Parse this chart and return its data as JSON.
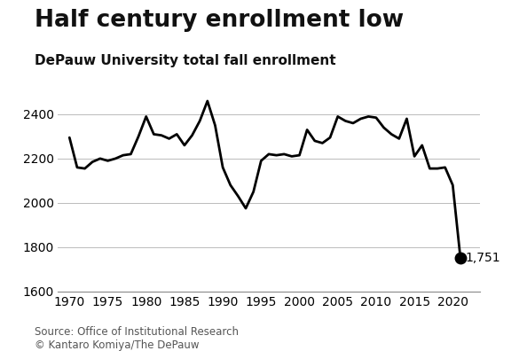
{
  "title": "Half century enrollment low",
  "subtitle": "DePauw University total fall enrollment",
  "source_line1": "Source: Office of Institutional Research",
  "source_line2": "© Kantaro Komiya/The DePauw",
  "last_label": "1,751",
  "years": [
    1970,
    1971,
    1972,
    1973,
    1974,
    1975,
    1976,
    1977,
    1978,
    1979,
    1980,
    1981,
    1982,
    1983,
    1984,
    1985,
    1986,
    1987,
    1988,
    1989,
    1990,
    1991,
    1992,
    1993,
    1994,
    1995,
    1996,
    1997,
    1998,
    1999,
    2000,
    2001,
    2002,
    2003,
    2004,
    2005,
    2006,
    2007,
    2008,
    2009,
    2010,
    2011,
    2012,
    2013,
    2014,
    2015,
    2016,
    2017,
    2018,
    2019,
    2020,
    2021
  ],
  "enrollment": [
    2295,
    2160,
    2155,
    2185,
    2200,
    2190,
    2200,
    2215,
    2220,
    2300,
    2390,
    2310,
    2305,
    2290,
    2310,
    2260,
    2305,
    2370,
    2460,
    2350,
    2160,
    2080,
    2030,
    1975,
    2050,
    2190,
    2220,
    2215,
    2220,
    2210,
    2215,
    2330,
    2280,
    2270,
    2295,
    2390,
    2370,
    2360,
    2380,
    2390,
    2385,
    2340,
    2310,
    2290,
    2380,
    2210,
    2260,
    2155,
    2155,
    2160,
    2080,
    1751
  ],
  "line_color": "#000000",
  "dot_color": "#000000",
  "bg_color": "#ffffff",
  "grid_color": "#bbbbbb",
  "ylim": [
    1600,
    2520
  ],
  "yticks": [
    1600,
    1800,
    2000,
    2200,
    2400
  ],
  "xticks": [
    1970,
    1975,
    1980,
    1985,
    1990,
    1995,
    2000,
    2005,
    2010,
    2015,
    2020
  ],
  "title_fontsize": 19,
  "subtitle_fontsize": 11,
  "tick_fontsize": 10,
  "source_fontsize": 8.5
}
